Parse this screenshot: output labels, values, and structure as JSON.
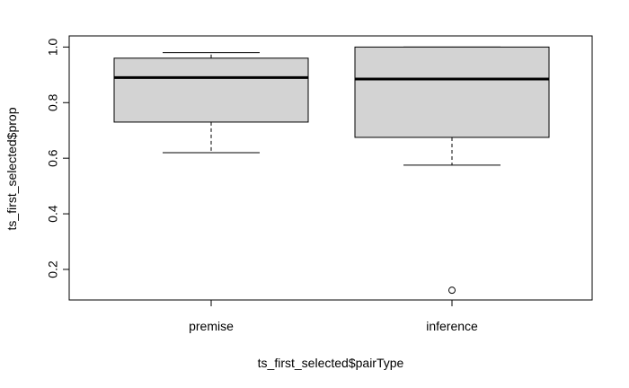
{
  "chart_data": {
    "type": "boxplot",
    "title": "",
    "xlabel": "ts_first_selected$pairType",
    "ylabel": "ts_first_selected$prop",
    "ylim": [
      0.09,
      1.04
    ],
    "yticks": [
      0.2,
      0.4,
      0.6,
      0.8,
      1.0
    ],
    "ytick_labels": [
      "0.2",
      "0.4",
      "0.6",
      "0.8",
      "1.0"
    ],
    "categories": [
      "premise",
      "inference"
    ],
    "boxes": [
      {
        "category": "premise",
        "whisker_low": 0.62,
        "q1": 0.73,
        "median": 0.89,
        "q3": 0.96,
        "whisker_high": 0.98,
        "outliers": []
      },
      {
        "category": "inference",
        "whisker_low": 0.575,
        "q1": 0.675,
        "median": 0.885,
        "q3": 1.0,
        "whisker_high": 1.0,
        "outliers": [
          0.125
        ]
      }
    ],
    "grid": false,
    "legend": "none",
    "colors": {
      "box_fill": "#d3d3d3",
      "stroke": "#000000"
    }
  }
}
